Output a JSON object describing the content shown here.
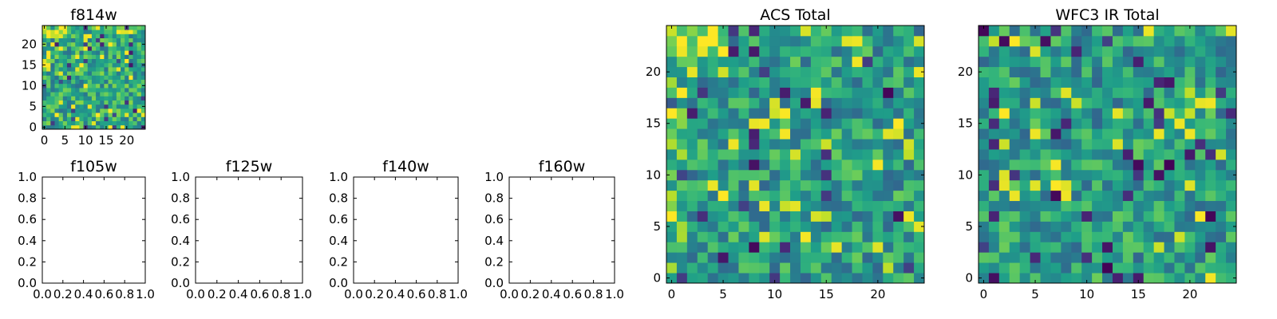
{
  "chart_data": [
    {
      "type": "heatmap",
      "title": "f814w",
      "xlabel": "",
      "ylabel": "",
      "xlim": [
        0,
        25
      ],
      "ylim": [
        0,
        25
      ],
      "xticks": [
        "0",
        "5",
        "10",
        "15",
        "20"
      ],
      "yticks": [
        "0",
        "5",
        "10",
        "15",
        "20"
      ],
      "colormap": "viridis",
      "grid": false,
      "values": []
    },
    {
      "type": "heatmap",
      "title": "f105w",
      "xlabel": "",
      "ylabel": "",
      "xlim": [
        0,
        1
      ],
      "ylim": [
        0,
        1
      ],
      "xticks": [
        "0.0",
        "0.2",
        "0.4",
        "0.6",
        "0.8",
        "1.0"
      ],
      "yticks": [
        "0.0",
        "0.2",
        "0.4",
        "0.6",
        "0.8",
        "1.0"
      ],
      "grid": false,
      "values": []
    },
    {
      "type": "heatmap",
      "title": "f125w",
      "xlabel": "",
      "ylabel": "",
      "xlim": [
        0,
        1
      ],
      "ylim": [
        0,
        1
      ],
      "xticks": [
        "0.0",
        "0.2",
        "0.4",
        "0.6",
        "0.8",
        "1.0"
      ],
      "yticks": [
        "0.0",
        "0.2",
        "0.4",
        "0.6",
        "0.8",
        "1.0"
      ],
      "grid": false,
      "values": []
    },
    {
      "type": "heatmap",
      "title": "f140w",
      "xlabel": "",
      "ylabel": "",
      "xlim": [
        0,
        1
      ],
      "ylim": [
        0,
        1
      ],
      "xticks": [
        "0.0",
        "0.2",
        "0.4",
        "0.6",
        "0.8",
        "1.0"
      ],
      "yticks": [
        "0.0",
        "0.2",
        "0.4",
        "0.6",
        "0.8",
        "1.0"
      ],
      "grid": false,
      "values": []
    },
    {
      "type": "heatmap",
      "title": "f160w",
      "xlabel": "",
      "ylabel": "",
      "xlim": [
        0,
        1
      ],
      "ylim": [
        0,
        1
      ],
      "xticks": [
        "0.0",
        "0.2",
        "0.4",
        "0.6",
        "0.8",
        "1.0"
      ],
      "yticks": [
        "0.0",
        "0.2",
        "0.4",
        "0.6",
        "0.8",
        "1.0"
      ],
      "grid": false,
      "values": []
    },
    {
      "type": "heatmap",
      "title": "ACS Total",
      "xlabel": "",
      "ylabel": "",
      "xlim": [
        0,
        25
      ],
      "ylim": [
        0,
        25
      ],
      "xticks": [
        "0",
        "5",
        "10",
        "15",
        "20"
      ],
      "yticks": [
        "0",
        "5",
        "10",
        "15",
        "20"
      ],
      "colormap": "viridis",
      "grid": false,
      "values": []
    },
    {
      "type": "heatmap",
      "title": "WFC3 IR Total",
      "xlabel": "",
      "ylabel": "",
      "xlim": [
        0,
        25
      ],
      "ylim": [
        0,
        25
      ],
      "xticks": [
        "0",
        "5",
        "10",
        "15",
        "20"
      ],
      "yticks": [
        "0",
        "5",
        "10",
        "15",
        "20"
      ],
      "colormap": "viridis",
      "grid": false,
      "values": []
    }
  ]
}
